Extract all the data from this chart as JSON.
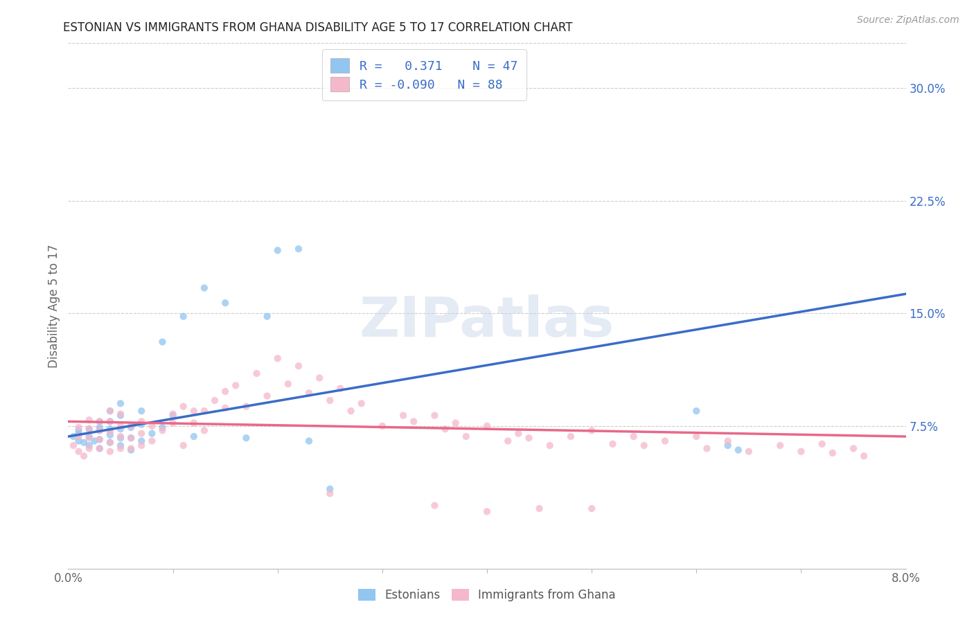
{
  "title": "ESTONIAN VS IMMIGRANTS FROM GHANA DISABILITY AGE 5 TO 17 CORRELATION CHART",
  "source": "Source: ZipAtlas.com",
  "ylabel": "Disability Age 5 to 17",
  "xlim": [
    0.0,
    0.08
  ],
  "ylim": [
    -0.02,
    0.33
  ],
  "ytick_labels_right": [
    "7.5%",
    "15.0%",
    "22.5%",
    "30.0%"
  ],
  "ytick_vals_right": [
    0.075,
    0.15,
    0.225,
    0.3
  ],
  "blue_color": "#92C5F0",
  "pink_color": "#F5B8CA",
  "blue_line_color": "#3A6CC8",
  "pink_line_color": "#E8688A",
  "watermark": "ZIPatlas",
  "background_color": "#ffffff",
  "grid_color": "#cccccc",
  "blue_scatter_x": [
    0.0005,
    0.001,
    0.001,
    0.001,
    0.0015,
    0.002,
    0.002,
    0.002,
    0.0025,
    0.003,
    0.003,
    0.003,
    0.003,
    0.003,
    0.004,
    0.004,
    0.004,
    0.004,
    0.004,
    0.005,
    0.005,
    0.005,
    0.005,
    0.005,
    0.006,
    0.006,
    0.006,
    0.007,
    0.007,
    0.007,
    0.008,
    0.009,
    0.009,
    0.01,
    0.011,
    0.012,
    0.013,
    0.015,
    0.017,
    0.019,
    0.02,
    0.022,
    0.023,
    0.025,
    0.06,
    0.063,
    0.064
  ],
  "blue_scatter_y": [
    0.068,
    0.065,
    0.07,
    0.072,
    0.064,
    0.062,
    0.068,
    0.073,
    0.065,
    0.06,
    0.066,
    0.072,
    0.078,
    0.074,
    0.064,
    0.069,
    0.073,
    0.078,
    0.085,
    0.062,
    0.067,
    0.073,
    0.082,
    0.09,
    0.059,
    0.067,
    0.074,
    0.065,
    0.076,
    0.085,
    0.07,
    0.131,
    0.074,
    0.082,
    0.148,
    0.068,
    0.167,
    0.157,
    0.067,
    0.148,
    0.192,
    0.193,
    0.065,
    0.033,
    0.085,
    0.062,
    0.059
  ],
  "pink_scatter_x": [
    0.0005,
    0.001,
    0.001,
    0.001,
    0.0015,
    0.002,
    0.002,
    0.002,
    0.002,
    0.003,
    0.003,
    0.003,
    0.003,
    0.004,
    0.004,
    0.004,
    0.004,
    0.004,
    0.005,
    0.005,
    0.005,
    0.005,
    0.006,
    0.006,
    0.006,
    0.007,
    0.007,
    0.007,
    0.008,
    0.008,
    0.009,
    0.01,
    0.01,
    0.011,
    0.011,
    0.012,
    0.012,
    0.013,
    0.013,
    0.014,
    0.015,
    0.015,
    0.016,
    0.017,
    0.018,
    0.019,
    0.02,
    0.021,
    0.022,
    0.023,
    0.024,
    0.025,
    0.026,
    0.027,
    0.028,
    0.03,
    0.032,
    0.033,
    0.035,
    0.036,
    0.037,
    0.038,
    0.04,
    0.042,
    0.043,
    0.044,
    0.046,
    0.048,
    0.05,
    0.052,
    0.054,
    0.055,
    0.057,
    0.06,
    0.061,
    0.063,
    0.065,
    0.068,
    0.07,
    0.072,
    0.073,
    0.075,
    0.076,
    0.025,
    0.04,
    0.05,
    0.035,
    0.045
  ],
  "pink_scatter_y": [
    0.062,
    0.058,
    0.068,
    0.074,
    0.055,
    0.06,
    0.067,
    0.073,
    0.079,
    0.06,
    0.066,
    0.072,
    0.078,
    0.058,
    0.064,
    0.071,
    0.078,
    0.085,
    0.06,
    0.068,
    0.075,
    0.083,
    0.06,
    0.067,
    0.075,
    0.062,
    0.07,
    0.078,
    0.065,
    0.075,
    0.072,
    0.077,
    0.083,
    0.062,
    0.088,
    0.077,
    0.085,
    0.072,
    0.085,
    0.092,
    0.087,
    0.098,
    0.102,
    0.088,
    0.11,
    0.095,
    0.12,
    0.103,
    0.115,
    0.097,
    0.107,
    0.092,
    0.1,
    0.085,
    0.09,
    0.075,
    0.082,
    0.078,
    0.082,
    0.073,
    0.077,
    0.068,
    0.075,
    0.065,
    0.07,
    0.067,
    0.062,
    0.068,
    0.072,
    0.063,
    0.068,
    0.062,
    0.065,
    0.068,
    0.06,
    0.065,
    0.058,
    0.062,
    0.058,
    0.063,
    0.057,
    0.06,
    0.055,
    0.03,
    0.018,
    0.02,
    0.022,
    0.02
  ],
  "blue_line_x0": 0.0,
  "blue_line_y0": 0.068,
  "blue_line_x1": 0.08,
  "blue_line_y1": 0.163,
  "pink_line_x0": 0.0,
  "pink_line_y0": 0.078,
  "pink_line_x1": 0.08,
  "pink_line_y1": 0.068
}
